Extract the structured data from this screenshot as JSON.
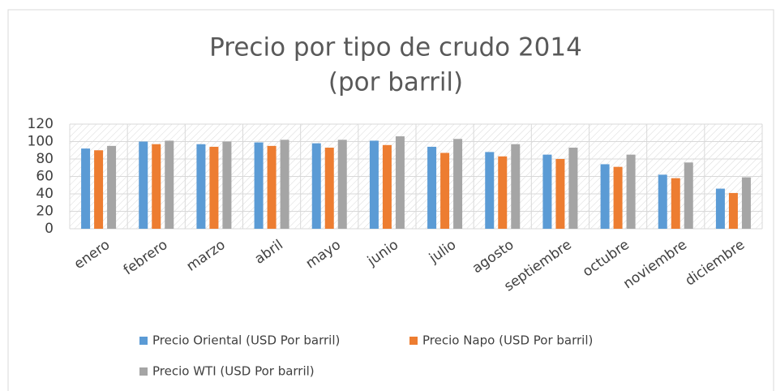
{
  "chart_data": {
    "type": "bar",
    "title": "Precio por tipo de crudo 2014",
    "subtitle": "(por barril)",
    "categories": [
      "enero",
      "febrero",
      "marzo",
      "abril",
      "mayo",
      "junio",
      "julio",
      "agosto",
      "septiembre",
      "octubre",
      "noviembre",
      "diciembre"
    ],
    "series": [
      {
        "name": "Precio Oriental (USD Por barril)",
        "color": "#5b9bd5",
        "values": [
          92,
          100,
          97,
          99,
          98,
          101,
          94,
          88,
          85,
          74,
          62,
          46
        ]
      },
      {
        "name": "Precio Napo (USD Por barril)",
        "color": "#ed7d31",
        "values": [
          90,
          97,
          94,
          95,
          93,
          96,
          87,
          83,
          80,
          71,
          58,
          41
        ]
      },
      {
        "name": "Precio WTI (USD Por barril)",
        "color": "#a5a5a5",
        "values": [
          95,
          101,
          100,
          102,
          102,
          106,
          103,
          97,
          93,
          85,
          76,
          59
        ]
      }
    ],
    "ylim": [
      0,
      120
    ],
    "yticks": [
      0,
      20,
      40,
      60,
      80,
      100,
      120
    ],
    "grid": true
  }
}
